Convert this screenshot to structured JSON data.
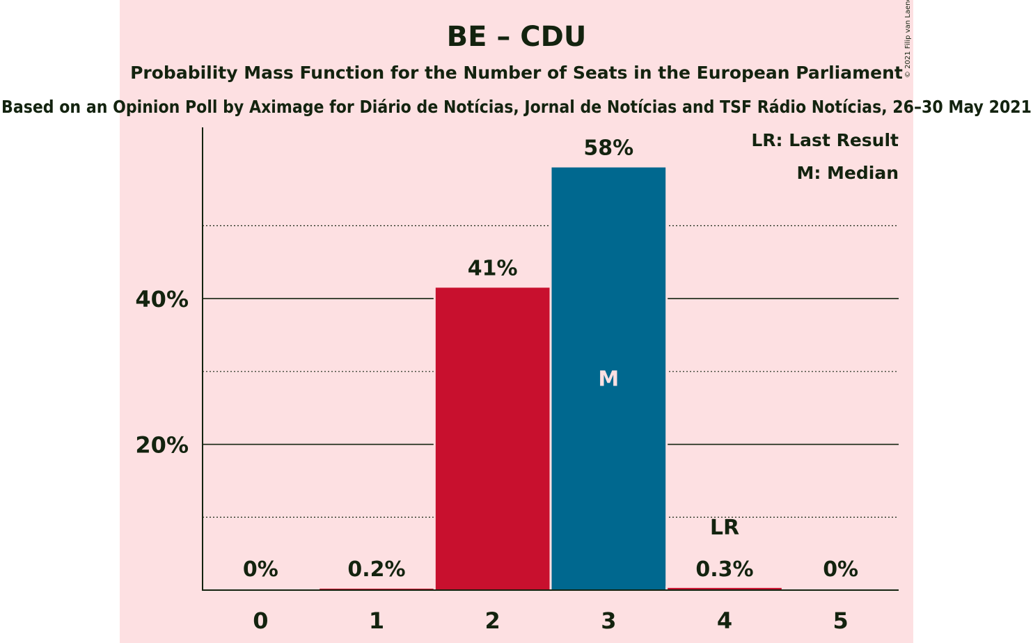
{
  "chart_data": {
    "type": "bar",
    "title": "BE – CDU",
    "subtitle": "Probability Mass Function for the Number of Seats in the European Parliament",
    "source": "Based on an Opinion Poll by Aximage for Diário de Notícias, Jornal de Notícias and TSF Rádio Notícias, 26–30 May 2021",
    "copyright": "© 2021 Filip van Laenen",
    "categories": [
      "0",
      "1",
      "2",
      "3",
      "4",
      "5"
    ],
    "values": [
      0,
      0.2,
      41.5,
      58,
      0.3,
      0
    ],
    "value_labels": [
      "0%",
      "0.2%",
      "41%",
      "58%",
      "0.3%",
      "0%"
    ],
    "bar_colors": [
      "#c8102e",
      "#c8102e",
      "#c8102e",
      "#00688f",
      "#c8102e",
      "#c8102e"
    ],
    "markers": [
      {
        "category": "3",
        "label": "M",
        "position": "inside"
      },
      {
        "category": "4",
        "label": "LR",
        "position": "above"
      }
    ],
    "yticks": [
      20,
      40
    ],
    "ytick_labels": [
      "20%",
      "40%"
    ],
    "minor_gridlines": [
      10,
      30,
      50
    ],
    "ylim": [
      0,
      63.5
    ],
    "legend": [
      "LR: Last Result",
      "M: Median"
    ],
    "legend_placement": "top-right",
    "grid": true,
    "xlabel": "",
    "ylabel": ""
  },
  "colors": {
    "background": "#fde0e2",
    "text": "#13230f",
    "be": "#c8102e",
    "cdu": "#00688f"
  }
}
